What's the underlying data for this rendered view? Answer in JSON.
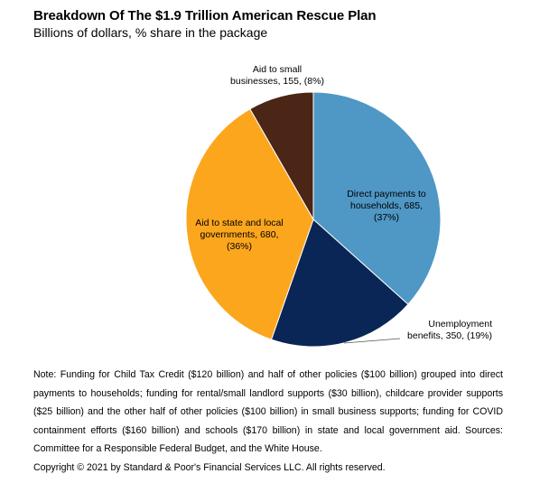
{
  "title": "Breakdown Of The $1.9 Trillion American Rescue Plan",
  "subtitle": "Billions of dollars, % share in the package",
  "chart_data": {
    "type": "pie",
    "categories": [
      "Direct payments to households",
      "Unemployment benefits",
      "Aid to state and local governments",
      "Aid to small businesses"
    ],
    "values": [
      685,
      350,
      680,
      155
    ],
    "shares": [
      "37%",
      "19%",
      "36%",
      "8%"
    ],
    "colors": [
      "#4f97c5",
      "#0a2656",
      "#fca61e",
      "#4b2515"
    ],
    "labels": [
      [
        "Direct payments to",
        "households, 685,",
        "(37%)"
      ],
      [
        "Unemployment",
        "benefits, 350, (19%)"
      ],
      [
        "Aid to state and local",
        "governments, 680,",
        "(36%)"
      ],
      [
        "Aid to small",
        "businesses, 155, (8%)"
      ]
    ]
  },
  "note": {
    "text": "Note: Funding for Child Tax Credit ($120 billion) and half of other policies ($100 billion) grouped into direct payments to households; funding for rental/small landlord supports ($30 billion), childcare provider supports ($25 billion) and the other half of other policies ($100 billion) in small business supports; funding for COVID containment efforts ($160 billion) and schools ($170 billion) in state and local government aid. Sources: Committee for a Responsible Federal Budget, and the White House.",
    "copyright": "Copyright © 2021 by Standard & Poor's Financial Services LLC. All rights reserved."
  }
}
